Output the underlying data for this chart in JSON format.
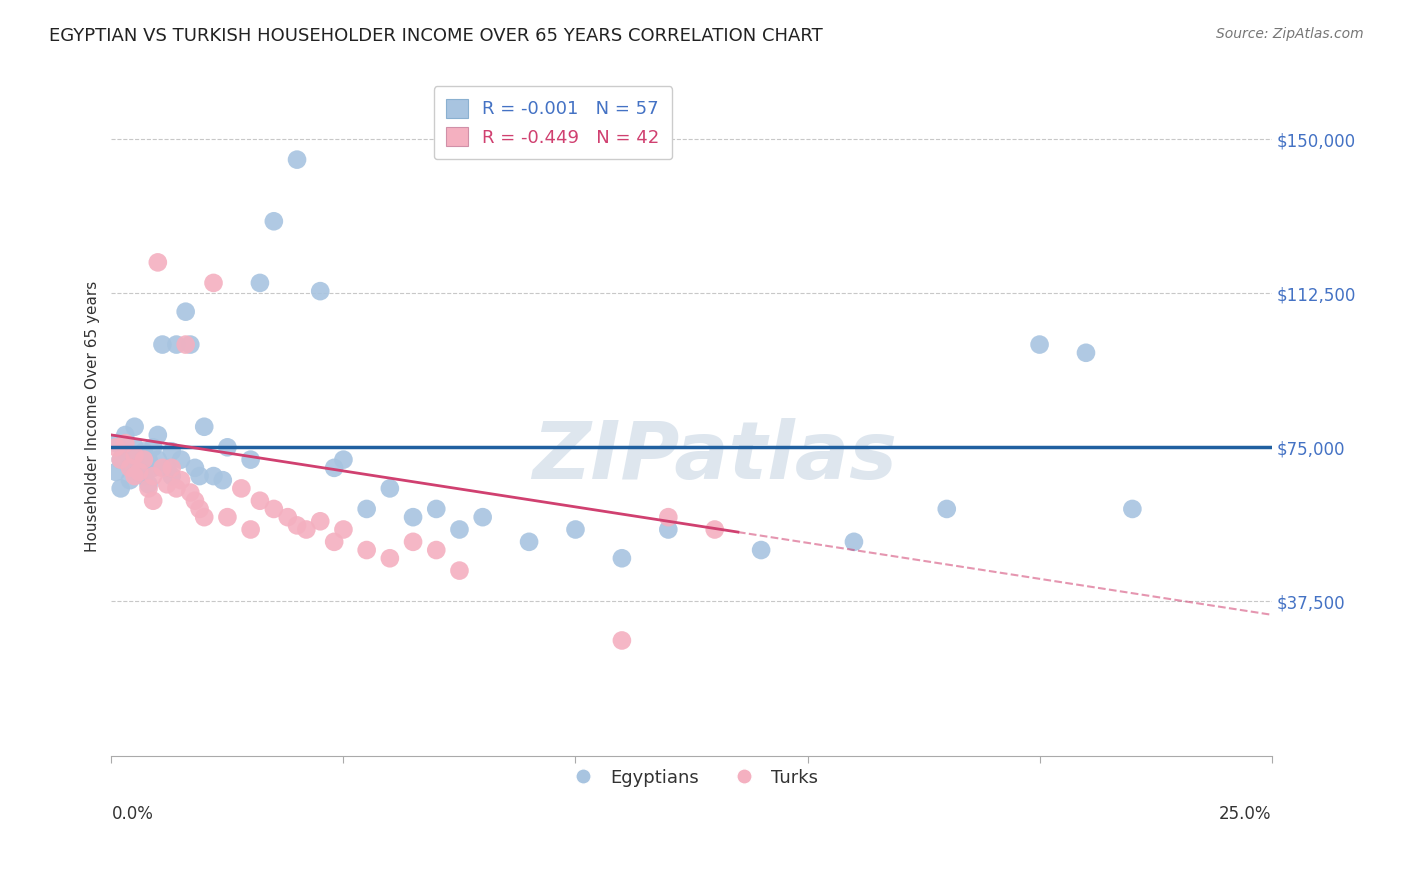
{
  "title": "EGYPTIAN VS TURKISH HOUSEHOLDER INCOME OVER 65 YEARS CORRELATION CHART",
  "source": "Source: ZipAtlas.com",
  "ylabel": "Householder Income Over 65 years",
  "r_egyptian": -0.001,
  "n_egyptian": 57,
  "r_turkish": -0.449,
  "n_turkish": 42,
  "egyptian_color": "#a8c4e0",
  "turkish_color": "#f4b0c0",
  "egyptian_line_color": "#2060a0",
  "turkish_line_color": "#d04070",
  "watermark": "ZIPatlas",
  "legend_labels": [
    "Egyptians",
    "Turks"
  ],
  "xlim": [
    0.0,
    0.25
  ],
  "ylim": [
    0,
    165000
  ],
  "ytick_positions": [
    37500,
    75000,
    112500,
    150000
  ],
  "ytick_labels": [
    "$37,500",
    "$75,000",
    "$112,500",
    "$150,000"
  ],
  "eg_line_y_intercept": 75000,
  "eg_line_slope": 0,
  "tr_line_y_intercept": 78000,
  "tr_line_slope": -175000,
  "egyptian_x": [
    0.001,
    0.001,
    0.002,
    0.002,
    0.003,
    0.003,
    0.004,
    0.004,
    0.005,
    0.005,
    0.006,
    0.006,
    0.007,
    0.007,
    0.008,
    0.008,
    0.009,
    0.009,
    0.01,
    0.01,
    0.011,
    0.012,
    0.013,
    0.013,
    0.014,
    0.015,
    0.016,
    0.017,
    0.018,
    0.019,
    0.02,
    0.022,
    0.024,
    0.025,
    0.03,
    0.032,
    0.035,
    0.04,
    0.045,
    0.048,
    0.05,
    0.055,
    0.06,
    0.065,
    0.07,
    0.075,
    0.08,
    0.09,
    0.1,
    0.11,
    0.12,
    0.14,
    0.16,
    0.18,
    0.2,
    0.21,
    0.22
  ],
  "egyptian_y": [
    76000,
    69000,
    72000,
    65000,
    78000,
    74000,
    71000,
    67000,
    75000,
    80000,
    73000,
    70000,
    68000,
    74000,
    72000,
    66000,
    75000,
    70000,
    78000,
    72000,
    100000,
    70000,
    74000,
    68000,
    100000,
    72000,
    108000,
    100000,
    70000,
    68000,
    80000,
    68000,
    67000,
    75000,
    72000,
    115000,
    130000,
    145000,
    113000,
    70000,
    72000,
    60000,
    65000,
    58000,
    60000,
    55000,
    58000,
    52000,
    55000,
    48000,
    55000,
    50000,
    52000,
    60000,
    100000,
    98000,
    60000
  ],
  "turkish_x": [
    0.001,
    0.002,
    0.003,
    0.004,
    0.005,
    0.005,
    0.006,
    0.007,
    0.008,
    0.009,
    0.009,
    0.01,
    0.011,
    0.012,
    0.013,
    0.014,
    0.015,
    0.016,
    0.017,
    0.018,
    0.019,
    0.02,
    0.022,
    0.025,
    0.028,
    0.03,
    0.032,
    0.035,
    0.038,
    0.04,
    0.042,
    0.045,
    0.048,
    0.05,
    0.055,
    0.06,
    0.065,
    0.07,
    0.075,
    0.11,
    0.12,
    0.13
  ],
  "turkish_y": [
    75000,
    72000,
    76000,
    70000,
    73000,
    68000,
    69000,
    72000,
    65000,
    68000,
    62000,
    120000,
    70000,
    66000,
    70000,
    65000,
    67000,
    100000,
    64000,
    62000,
    60000,
    58000,
    115000,
    58000,
    65000,
    55000,
    62000,
    60000,
    58000,
    56000,
    55000,
    57000,
    52000,
    55000,
    50000,
    48000,
    52000,
    50000,
    45000,
    28000,
    58000,
    55000
  ]
}
